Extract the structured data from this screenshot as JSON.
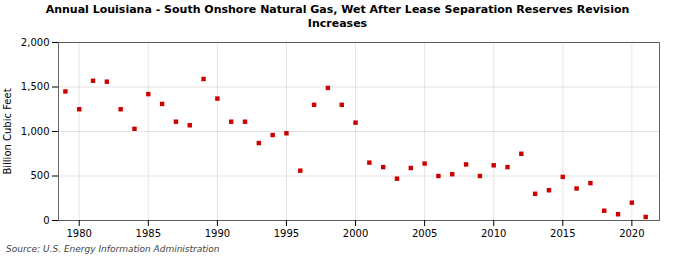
{
  "chart_data": {
    "type": "scatter",
    "title": "Annual Louisiana - South Onshore Natural Gas, Wet After Lease Separation Reserves Revision\nIncreases",
    "ylabel": "Billion Cubic Feet",
    "source": "Source: U.S. Energy Information Administration",
    "x": [
      1979,
      1980,
      1981,
      1982,
      1983,
      1984,
      1985,
      1986,
      1987,
      1988,
      1989,
      1990,
      1991,
      1992,
      1993,
      1994,
      1995,
      1996,
      1997,
      1998,
      1999,
      2000,
      2001,
      2002,
      2003,
      2004,
      2005,
      2006,
      2007,
      2008,
      2009,
      2010,
      2011,
      2012,
      2013,
      2014,
      2015,
      2016,
      2017,
      2018,
      2019,
      2020,
      2021
    ],
    "values": [
      1450,
      1250,
      1570,
      1560,
      1250,
      1030,
      1420,
      1310,
      1110,
      1070,
      1590,
      1370,
      1110,
      1110,
      870,
      960,
      980,
      560,
      1300,
      1490,
      1300,
      1100,
      650,
      600,
      470,
      590,
      640,
      500,
      520,
      630,
      500,
      620,
      600,
      750,
      300,
      340,
      490,
      360,
      420,
      110,
      70,
      200,
      40
    ],
    "color": "#cc0000",
    "marker": "square",
    "xlim": [
      1978.5,
      2022
    ],
    "xticks": [
      1980,
      1985,
      1990,
      1995,
      2000,
      2005,
      2010,
      2015,
      2020
    ],
    "ylim": [
      0,
      2000
    ],
    "yticks": [
      0,
      500,
      {
        "value": 1000,
        "label": "1,000"
      },
      {
        "value": 1500,
        "label": "1,500"
      },
      {
        "value": 2000,
        "label": "2,000"
      }
    ],
    "grid": true
  }
}
